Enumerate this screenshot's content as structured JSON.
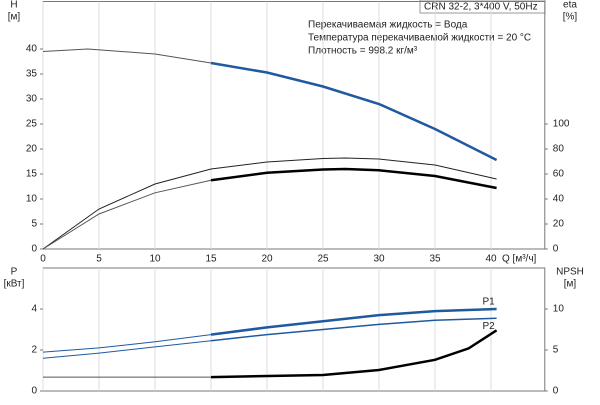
{
  "info": {
    "title": "CRN 32-2, 3*400 V, 50Hz",
    "lines": [
      "Перекачиваемая жидкость = Вода",
      "Температура перекачиваемой жидкости = 20 °C",
      "Плотность = 998.2 кг/м³"
    ]
  },
  "chart_data": [
    {
      "type": "line",
      "ylabel": "H",
      "yunit": "[м]",
      "y2label": "eta",
      "y2unit": "[%]",
      "xlabel": "Q [м³/ч]",
      "xlim": [
        0,
        44.8
      ],
      "xticks": [
        0,
        5,
        10,
        15,
        20,
        25,
        30,
        35,
        40
      ],
      "ylim": [
        0,
        49.5
      ],
      "yticks": [
        0,
        5,
        10,
        15,
        20,
        25,
        30,
        35,
        40
      ],
      "y2lim": [
        0,
        198
      ],
      "y2ticks": [
        0,
        20,
        40,
        60,
        80,
        100
      ],
      "grid": true,
      "series": [
        {
          "color": "#555555",
          "width": 1,
          "x": [
            0,
            4,
            10,
            15
          ],
          "values": [
            39.5,
            40,
            39,
            37.2
          ]
        },
        {
          "color": "#1f5aa0",
          "width": 2.5,
          "x": [
            15,
            20,
            25,
            30,
            35,
            40.5
          ],
          "values": [
            37.2,
            35.3,
            32.5,
            29,
            24,
            17.8
          ]
        },
        {
          "color": "#222222",
          "width": 1,
          "axis": "y2",
          "x": [
            0,
            5,
            10,
            15,
            20,
            25,
            27,
            30,
            35,
            40.5
          ],
          "values": [
            0,
            32,
            52,
            64,
            69.6,
            72.4,
            72.8,
            72,
            67.2,
            56
          ]
        },
        {
          "color": "#555555",
          "width": 1,
          "axis": "y2",
          "x": [
            0,
            5,
            10,
            15
          ],
          "values": [
            0,
            28,
            45,
            55
          ]
        },
        {
          "color": "#000000",
          "width": 2.5,
          "axis": "y2",
          "x": [
            15,
            20,
            25,
            27,
            30,
            35,
            40.5
          ],
          "values": [
            55,
            61,
            63.6,
            64,
            63,
            58.4,
            48.8
          ]
        }
      ]
    },
    {
      "type": "line",
      "ylabel": "P",
      "yunit": "[кВт]",
      "y2label": "NPSH",
      "y2unit": "[м]",
      "xlim": [
        0,
        44.8
      ],
      "xticks": [
        0,
        5,
        10,
        15,
        20,
        25,
        30,
        35,
        40
      ],
      "ylim": [
        0,
        6
      ],
      "yticks": [
        0,
        2,
        4
      ],
      "y2lim": [
        0,
        15
      ],
      "y2ticks": [
        0,
        5,
        10
      ],
      "grid": true,
      "series": [
        {
          "color": "#1f5aa0",
          "width": 1,
          "x": [
            0,
            5,
            10,
            15
          ],
          "values": [
            1.9,
            2.1,
            2.4,
            2.75
          ]
        },
        {
          "name": "P1",
          "color": "#1f5aa0",
          "width": 2.5,
          "x": [
            15,
            20,
            25,
            30,
            35,
            40.5
          ],
          "values": [
            2.75,
            3.1,
            3.4,
            3.7,
            3.9,
            4.0
          ]
        },
        {
          "color": "#1f5aa0",
          "width": 1,
          "x": [
            0,
            5,
            10,
            15
          ],
          "values": [
            1.6,
            1.85,
            2.15,
            2.45
          ]
        },
        {
          "name": "P2",
          "color": "#1f5aa0",
          "width": 1.5,
          "x": [
            15,
            20,
            25,
            30,
            35,
            40.5
          ],
          "values": [
            2.45,
            2.75,
            3.0,
            3.25,
            3.45,
            3.55
          ]
        },
        {
          "color": "#555555",
          "width": 1,
          "axis": "y2",
          "x": [
            0,
            15
          ],
          "values": [
            1.7,
            1.7
          ]
        },
        {
          "color": "#000000",
          "width": 2.5,
          "axis": "y2",
          "x": [
            15,
            25,
            30,
            35,
            38,
            40.5
          ],
          "values": [
            1.7,
            1.95,
            2.56,
            3.8,
            5.2,
            7.4
          ]
        }
      ]
    }
  ]
}
